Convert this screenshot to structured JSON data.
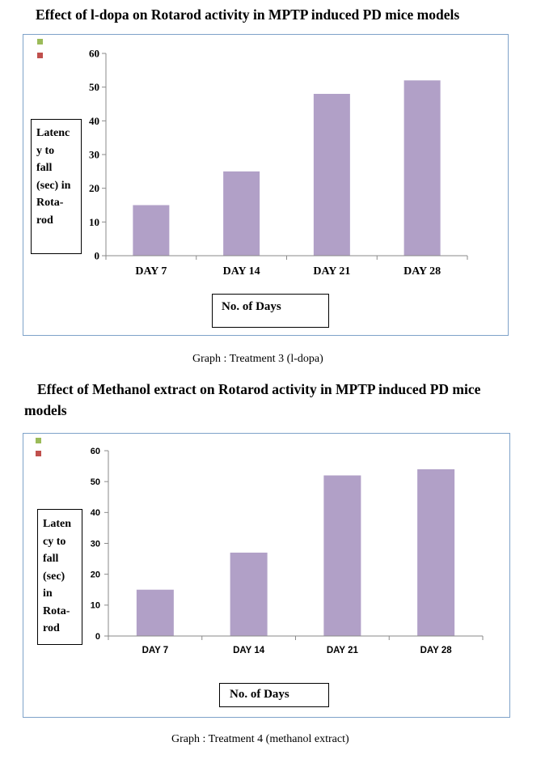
{
  "chart1_heading": "Effect of l-dopa on Rotarod activity in MPTP induced PD mice models",
  "chart1_caption": "Graph   : Treatment 3 (l-dopa)",
  "chart2_heading_line1": "Effect of Methanol extract on Rotarod activity in MPTP induced PD mice",
  "chart2_heading_line2": "models",
  "chart2_caption": "Graph     : Treatment 4 (methanol extract)",
  "colors": {
    "bar": "#b1a0c7",
    "frame_border": "#7ea2c9",
    "legend_green": "#9bbb59",
    "legend_red": "#c0504d"
  },
  "chart_data": [
    {
      "type": "bar",
      "title": "Effect of l-dopa on Rotarod activity in MPTP induced PD mice models",
      "categories": [
        "DAY 7",
        "DAY 14",
        "DAY 21",
        "DAY 28"
      ],
      "values": [
        15,
        25,
        48,
        52
      ],
      "ylabel_lines": [
        "Latenc",
        "y to",
        "fall",
        "(sec) in",
        "Rota-",
        "rod"
      ],
      "xlabel": "No. of Days",
      "ylim": [
        0,
        60
      ],
      "yticks": [
        0,
        10,
        20,
        30,
        40,
        50,
        60
      ],
      "grid": false,
      "legend": "top-left, unlabeled"
    },
    {
      "type": "bar",
      "title": "Effect of Methanol extract on Rotarod activity in MPTP induced PD mice models",
      "categories": [
        "DAY 7",
        "DAY 14",
        "DAY 21",
        "DAY 28"
      ],
      "values": [
        15,
        27,
        52,
        54
      ],
      "ylabel_lines": [
        "Laten",
        "cy to",
        "fall",
        "(sec)",
        "in",
        "Rota-",
        "rod"
      ],
      "xlabel": "No. of Days",
      "ylim": [
        0,
        60
      ],
      "yticks": [
        0,
        10,
        20,
        30,
        40,
        50,
        60
      ],
      "grid": false,
      "legend": "top-left, unlabeled"
    }
  ]
}
